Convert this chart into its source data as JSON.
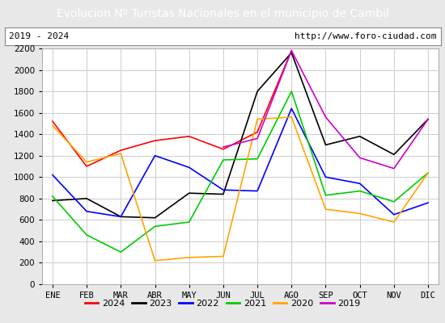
{
  "title": "Evolucion Nº Turistas Nacionales en el municipio de Cambil",
  "subtitle_left": "2019 - 2024",
  "subtitle_right": "http://www.foro-ciudad.com",
  "title_bg_color": "#4472c4",
  "title_text_color": "#ffffff",
  "months": [
    "ENE",
    "FEB",
    "MAR",
    "ABR",
    "MAY",
    "JUN",
    "JUL",
    "AGO",
    "SEP",
    "OCT",
    "NOV",
    "DIC"
  ],
  "ylim": [
    0,
    2200
  ],
  "yticks": [
    0,
    200,
    400,
    600,
    800,
    1000,
    1200,
    1400,
    1600,
    1800,
    2000,
    2200
  ],
  "series": {
    "2024": {
      "color": "#ff0000",
      "data": [
        1520,
        1100,
        1250,
        1340,
        1380,
        1260,
        1420,
        2180,
        null,
        null,
        null,
        null
      ]
    },
    "2023": {
      "color": "#000000",
      "data": [
        780,
        800,
        630,
        620,
        850,
        840,
        1800,
        2160,
        1300,
        1380,
        1210,
        1540
      ]
    },
    "2022": {
      "color": "#0000ff",
      "data": [
        1020,
        680,
        630,
        1200,
        1090,
        880,
        870,
        1640,
        1000,
        940,
        650,
        760
      ]
    },
    "2021": {
      "color": "#00cc00",
      "data": [
        820,
        460,
        300,
        540,
        580,
        1160,
        1170,
        1800,
        830,
        870,
        770,
        1040
      ]
    },
    "2020": {
      "color": "#ffa500",
      "data": [
        1480,
        1140,
        1220,
        220,
        250,
        260,
        1540,
        1560,
        700,
        660,
        580,
        1040
      ]
    },
    "2019": {
      "color": "#cc00cc",
      "data": [
        null,
        null,
        null,
        null,
        null,
        1280,
        1360,
        2180,
        1560,
        1180,
        1080,
        1540
      ]
    }
  },
  "legend_order": [
    "2024",
    "2023",
    "2022",
    "2021",
    "2020",
    "2019"
  ],
  "background_color": "#e8e8e8",
  "plot_bg_color": "#e8e8e8",
  "inner_plot_bg": "#ffffff",
  "grid_color": "#cccccc"
}
